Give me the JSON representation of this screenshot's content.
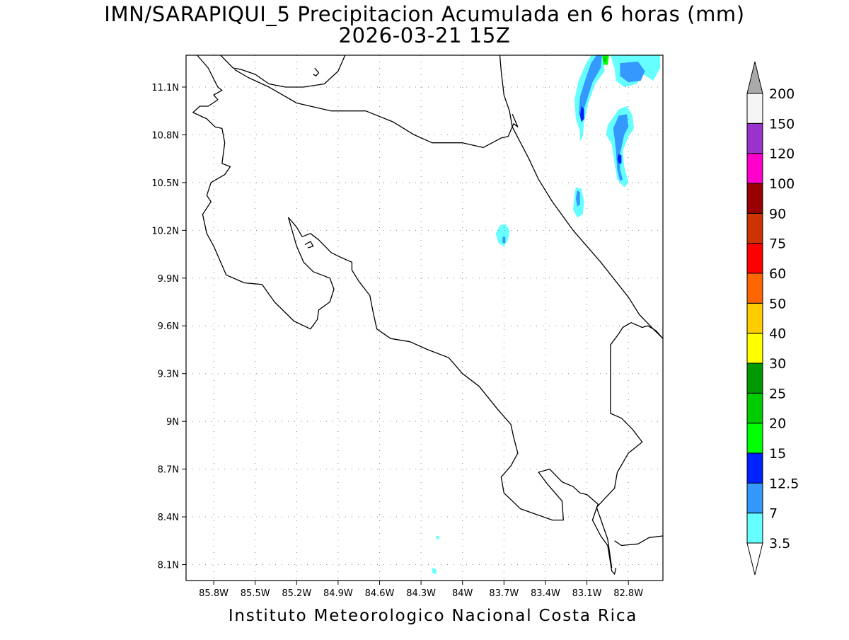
{
  "header": {
    "title_line1": "IMN/SARAPIQUI_5 Precipitacion Acumulada en 6 horas (mm)",
    "title_line2": "2026-03-21 15Z"
  },
  "footer": {
    "credit": "Instituto Meteorologico Nacional Costa Rica"
  },
  "map": {
    "lon_range": [
      -86.0,
      -82.55
    ],
    "lat_range": [
      8.0,
      11.3
    ],
    "lon_ticks": [
      {
        "value": -85.8,
        "label": "85.8W"
      },
      {
        "value": -85.5,
        "label": "85.5W"
      },
      {
        "value": -85.2,
        "label": "85.2W"
      },
      {
        "value": -84.9,
        "label": "84.9W"
      },
      {
        "value": -84.6,
        "label": "84.6W"
      },
      {
        "value": -84.3,
        "label": "84.3W"
      },
      {
        "value": -84.0,
        "label": "84W"
      },
      {
        "value": -83.7,
        "label": "83.7W"
      },
      {
        "value": -83.4,
        "label": "83.4W"
      },
      {
        "value": -83.1,
        "label": "83.1W"
      },
      {
        "value": -82.8,
        "label": "82.8W"
      }
    ],
    "lat_ticks": [
      {
        "value": 11.1,
        "label": "11.1N"
      },
      {
        "value": 10.8,
        "label": "10.8N"
      },
      {
        "value": 10.5,
        "label": "10.5N"
      },
      {
        "value": 10.2,
        "label": "10.2N"
      },
      {
        "value": 9.9,
        "label": "9.9N"
      },
      {
        "value": 9.6,
        "label": "9.6N"
      },
      {
        "value": 9.3,
        "label": "9.3N"
      },
      {
        "value": 9.0,
        "label": "9N"
      },
      {
        "value": 8.7,
        "label": "8.7N"
      },
      {
        "value": 8.4,
        "label": "8.4N"
      },
      {
        "value": 8.1,
        "label": "8.1N"
      }
    ],
    "grid": true
  },
  "legend": {
    "labels": [
      "3.5",
      "7",
      "12.5",
      "15",
      "20",
      "25",
      "30",
      "40",
      "50",
      "60",
      "75",
      "90",
      "100",
      "120",
      "150",
      "200"
    ],
    "colors": [
      "#66ffff",
      "#3399ff",
      "#0022ff",
      "#00ff00",
      "#00cc00",
      "#009900",
      "#ffff00",
      "#ffcc00",
      "#ff6600",
      "#ff0000",
      "#cc3300",
      "#990000",
      "#ff00cc",
      "#9933cc",
      "#f5f5f5"
    ],
    "over_color": "#aaaaaa",
    "under_color": "#ffffff"
  },
  "precip_areas": [
    {
      "level": "3.5",
      "color": "#66ffff",
      "points": [
        [
          -83.07,
          11.3
        ],
        [
          -82.99,
          11.3
        ],
        [
          -82.97,
          11.2
        ],
        [
          -83.04,
          11.12
        ],
        [
          -83.09,
          11.0
        ],
        [
          -83.12,
          10.88
        ],
        [
          -83.13,
          10.79
        ],
        [
          -83.15,
          10.76
        ],
        [
          -83.15,
          10.82
        ],
        [
          -83.18,
          10.9
        ],
        [
          -83.19,
          11.02
        ],
        [
          -83.16,
          11.14
        ],
        [
          -83.11,
          11.24
        ]
      ]
    },
    {
      "level": "3.5",
      "color": "#66ffff",
      "points": [
        [
          -82.93,
          11.3
        ],
        [
          -82.57,
          11.3
        ],
        [
          -82.57,
          11.22
        ],
        [
          -82.62,
          11.14
        ],
        [
          -82.69,
          11.18
        ],
        [
          -82.74,
          11.12
        ],
        [
          -82.83,
          11.1
        ],
        [
          -82.89,
          11.14
        ],
        [
          -82.9,
          11.22
        ]
      ]
    },
    {
      "level": "3.5",
      "color": "#66ffff",
      "points": [
        [
          -82.95,
          10.86
        ],
        [
          -82.87,
          10.96
        ],
        [
          -82.81,
          10.98
        ],
        [
          -82.77,
          10.92
        ],
        [
          -82.76,
          10.84
        ],
        [
          -82.8,
          10.79
        ],
        [
          -82.84,
          10.7
        ],
        [
          -82.83,
          10.6
        ],
        [
          -82.8,
          10.5
        ],
        [
          -82.83,
          10.47
        ],
        [
          -82.88,
          10.52
        ],
        [
          -82.9,
          10.62
        ],
        [
          -82.92,
          10.74
        ],
        [
          -82.96,
          10.8
        ]
      ]
    },
    {
      "level": "3.5",
      "color": "#66ffff",
      "points": [
        [
          -83.18,
          10.47
        ],
        [
          -83.14,
          10.46
        ],
        [
          -83.12,
          10.38
        ],
        [
          -83.13,
          10.3
        ],
        [
          -83.17,
          10.28
        ],
        [
          -83.2,
          10.33
        ],
        [
          -83.19,
          10.42
        ]
      ]
    },
    {
      "level": "3.5",
      "color": "#66ffff",
      "points": [
        [
          -83.73,
          10.23
        ],
        [
          -83.69,
          10.24
        ],
        [
          -83.66,
          10.2
        ],
        [
          -83.67,
          10.14
        ],
        [
          -83.7,
          10.1
        ],
        [
          -83.74,
          10.12
        ],
        [
          -83.76,
          10.18
        ]
      ]
    },
    {
      "level": "3.5",
      "color": "#66ffff",
      "points": [
        [
          -84.19,
          8.28
        ],
        [
          -84.17,
          8.28
        ],
        [
          -84.17,
          8.26
        ],
        [
          -84.19,
          8.26
        ]
      ]
    },
    {
      "level": "3.5",
      "color": "#66ffff",
      "points": [
        [
          -84.22,
          8.08
        ],
        [
          -84.19,
          8.07
        ],
        [
          -84.19,
          8.04
        ],
        [
          -84.22,
          8.05
        ]
      ]
    },
    {
      "level": "7",
      "color": "#3399ff",
      "points": [
        [
          -83.03,
          11.3
        ],
        [
          -82.99,
          11.3
        ],
        [
          -83.0,
          11.22
        ],
        [
          -83.06,
          11.13
        ],
        [
          -83.1,
          11.02
        ],
        [
          -83.13,
          10.94
        ],
        [
          -83.16,
          10.92
        ],
        [
          -83.15,
          11.04
        ],
        [
          -83.11,
          11.15
        ],
        [
          -83.07,
          11.25
        ]
      ]
    },
    {
      "level": "7",
      "color": "#3399ff",
      "points": [
        [
          -82.86,
          11.25
        ],
        [
          -82.73,
          11.26
        ],
        [
          -82.68,
          11.2
        ],
        [
          -82.71,
          11.14
        ],
        [
          -82.8,
          11.13
        ],
        [
          -82.86,
          11.17
        ]
      ]
    },
    {
      "level": "7",
      "color": "#3399ff",
      "points": [
        [
          -82.91,
          10.84
        ],
        [
          -82.87,
          10.92
        ],
        [
          -82.81,
          10.93
        ],
        [
          -82.8,
          10.85
        ],
        [
          -82.83,
          10.8
        ],
        [
          -82.86,
          10.68
        ],
        [
          -82.86,
          10.58
        ],
        [
          -82.84,
          10.52
        ],
        [
          -82.86,
          10.51
        ],
        [
          -82.88,
          10.58
        ],
        [
          -82.89,
          10.7
        ],
        [
          -82.9,
          10.78
        ]
      ]
    },
    {
      "level": "7",
      "color": "#3399ff",
      "points": [
        [
          -83.17,
          10.45
        ],
        [
          -83.15,
          10.44
        ],
        [
          -83.15,
          10.36
        ],
        [
          -83.17,
          10.35
        ],
        [
          -83.18,
          10.4
        ]
      ]
    },
    {
      "level": "7",
      "color": "#3399ff",
      "points": [
        [
          -83.71,
          10.16
        ],
        [
          -83.69,
          10.16
        ],
        [
          -83.69,
          10.12
        ],
        [
          -83.71,
          10.12
        ]
      ]
    },
    {
      "level": "12.5",
      "color": "#0022ff",
      "points": [
        [
          -83.14,
          10.98
        ],
        [
          -83.12,
          10.96
        ],
        [
          -83.12,
          10.9
        ],
        [
          -83.14,
          10.88
        ],
        [
          -83.15,
          10.92
        ]
      ]
    },
    {
      "level": "12.5",
      "color": "#0022ff",
      "points": [
        [
          -82.87,
          10.68
        ],
        [
          -82.85,
          10.67
        ],
        [
          -82.85,
          10.62
        ],
        [
          -82.87,
          10.62
        ],
        [
          -82.88,
          10.65
        ]
      ]
    },
    {
      "level": "15",
      "color": "#00ff00",
      "points": [
        [
          -82.99,
          11.3
        ],
        [
          -82.94,
          11.3
        ],
        [
          -82.95,
          11.24
        ],
        [
          -82.98,
          11.24
        ]
      ]
    },
    {
      "level": "20",
      "color": "#00cc00",
      "points": [
        [
          -82.98,
          11.29
        ],
        [
          -82.96,
          11.29
        ],
        [
          -82.96,
          11.26
        ],
        [
          -82.98,
          11.26
        ]
      ]
    }
  ],
  "coastlines": [
    {
      "name": "northwest-coast",
      "points": [
        [
          -85.92,
          11.3
        ],
        [
          -85.84,
          11.22
        ],
        [
          -85.8,
          11.15
        ],
        [
          -85.77,
          11.1
        ],
        [
          -85.74,
          11.08
        ],
        [
          -85.8,
          11.05
        ],
        [
          -85.77,
          11.02
        ],
        [
          -85.84,
          10.98
        ],
        [
          -85.9,
          10.98
        ],
        [
          -85.95,
          10.94
        ],
        [
          -85.85,
          10.9
        ],
        [
          -85.79,
          10.85
        ],
        [
          -85.74,
          10.84
        ],
        [
          -85.72,
          10.75
        ],
        [
          -85.74,
          10.62
        ],
        [
          -85.68,
          10.6
        ],
        [
          -85.72,
          10.55
        ],
        [
          -85.82,
          10.5
        ],
        [
          -85.85,
          10.42
        ],
        [
          -85.82,
          10.38
        ],
        [
          -85.88,
          10.3
        ],
        [
          -85.85,
          10.18
        ],
        [
          -85.8,
          10.1
        ],
        [
          -85.71,
          9.92
        ],
        [
          -85.58,
          9.87
        ],
        [
          -85.45,
          9.86
        ],
        [
          -85.36,
          9.75
        ],
        [
          -85.22,
          9.63
        ],
        [
          -85.1,
          9.58
        ],
        [
          -85.05,
          9.64
        ],
        [
          -85.04,
          9.7
        ],
        [
          -84.96,
          9.75
        ],
        [
          -84.93,
          9.83
        ],
        [
          -84.96,
          9.9
        ],
        [
          -85.08,
          9.94
        ],
        [
          -85.15,
          10.0
        ],
        [
          -85.2,
          10.1
        ],
        [
          -85.24,
          10.22
        ],
        [
          -85.26,
          10.28
        ],
        [
          -85.2,
          10.22
        ],
        [
          -85.16,
          10.16
        ],
        [
          -85.1,
          10.18
        ],
        [
          -85.04,
          10.14
        ],
        [
          -84.95,
          10.06
        ],
        [
          -84.88,
          10.03
        ],
        [
          -84.8,
          10.0
        ],
        [
          -84.8,
          9.95
        ],
        [
          -84.75,
          9.88
        ],
        [
          -84.67,
          9.79
        ],
        [
          -84.65,
          9.7
        ],
        [
          -84.62,
          9.58
        ],
        [
          -84.52,
          9.52
        ],
        [
          -84.38,
          9.5
        ],
        [
          -84.25,
          9.45
        ],
        [
          -84.1,
          9.4
        ],
        [
          -84.0,
          9.3
        ],
        [
          -83.88,
          9.22
        ],
        [
          -83.75,
          9.08
        ],
        [
          -83.65,
          8.98
        ],
        [
          -83.63,
          8.9
        ],
        [
          -83.6,
          8.8
        ],
        [
          -83.65,
          8.72
        ],
        [
          -83.72,
          8.65
        ],
        [
          -83.7,
          8.55
        ],
        [
          -83.58,
          8.45
        ],
        [
          -83.48,
          8.42
        ],
        [
          -83.35,
          8.38
        ],
        [
          -83.27,
          8.38
        ],
        [
          -83.28,
          8.5
        ],
        [
          -83.38,
          8.6
        ],
        [
          -83.45,
          8.68
        ],
        [
          -83.37,
          8.7
        ],
        [
          -83.28,
          8.62
        ],
        [
          -83.2,
          8.59
        ],
        [
          -83.15,
          8.55
        ],
        [
          -83.1,
          8.54
        ],
        [
          -83.02,
          8.48
        ],
        [
          -83.06,
          8.38
        ],
        [
          -83.0,
          8.28
        ],
        [
          -82.95,
          8.22
        ],
        [
          -82.92,
          8.06
        ],
        [
          -82.9,
          8.04
        ],
        [
          -82.89,
          8.08
        ]
      ]
    },
    {
      "name": "chira-island",
      "points": [
        [
          -85.14,
          10.11
        ],
        [
          -85.1,
          10.13
        ],
        [
          -85.08,
          10.1
        ],
        [
          -85.12,
          10.09
        ]
      ]
    },
    {
      "name": "nicaragua-border",
      "points": [
        [
          -85.65,
          11.21
        ],
        [
          -85.55,
          11.16
        ],
        [
          -85.4,
          11.1
        ],
        [
          -85.2,
          11.0
        ],
        [
          -84.95,
          10.95
        ],
        [
          -84.7,
          10.95
        ],
        [
          -84.5,
          10.88
        ],
        [
          -84.35,
          10.8
        ],
        [
          -84.22,
          10.75
        ],
        [
          -84.0,
          10.75
        ],
        [
          -83.85,
          10.72
        ],
        [
          -83.72,
          10.78
        ],
        [
          -83.67,
          10.79
        ],
        [
          -83.63,
          10.87
        ],
        [
          -83.6,
          10.85
        ],
        [
          -83.64,
          10.93
        ]
      ]
    },
    {
      "name": "lake-nicaragua-shore",
      "points": [
        [
          -85.75,
          11.3
        ],
        [
          -85.66,
          11.22
        ],
        [
          -85.6,
          11.21
        ],
        [
          -85.5,
          11.18
        ],
        [
          -85.4,
          11.12
        ],
        [
          -85.28,
          11.1
        ],
        [
          -85.15,
          11.1
        ],
        [
          -85.0,
          11.12
        ],
        [
          -84.9,
          11.2
        ],
        [
          -84.85,
          11.3
        ]
      ]
    },
    {
      "name": "lake-island",
      "points": [
        [
          -85.07,
          11.22
        ],
        [
          -85.04,
          11.19
        ],
        [
          -85.06,
          11.17
        ],
        [
          -85.08,
          11.18
        ]
      ]
    },
    {
      "name": "nicaragua-east-coast",
      "points": [
        [
          -83.73,
          11.3
        ],
        [
          -83.72,
          11.2
        ],
        [
          -83.7,
          11.05
        ],
        [
          -83.66,
          10.95
        ],
        [
          -83.64,
          10.85
        ]
      ]
    },
    {
      "name": "caribbean-coast",
      "points": [
        [
          -83.64,
          10.85
        ],
        [
          -83.58,
          10.75
        ],
        [
          -83.52,
          10.65
        ],
        [
          -83.45,
          10.52
        ],
        [
          -83.35,
          10.38
        ],
        [
          -83.2,
          10.2
        ],
        [
          -83.0,
          10.0
        ],
        [
          -82.8,
          9.78
        ],
        [
          -82.72,
          9.67
        ],
        [
          -82.62,
          9.58
        ],
        [
          -82.55,
          9.52
        ]
      ]
    },
    {
      "name": "panama-border-north",
      "points": [
        [
          -82.55,
          9.52
        ],
        [
          -82.6,
          9.57
        ],
        [
          -82.66,
          9.6
        ],
        [
          -82.7,
          9.59
        ],
        [
          -82.78,
          9.62
        ],
        [
          -82.84,
          9.59
        ],
        [
          -82.87,
          9.55
        ],
        [
          -82.93,
          9.48
        ],
        [
          -82.93,
          9.05
        ],
        [
          -82.85,
          9.02
        ],
        [
          -82.77,
          8.95
        ],
        [
          -82.7,
          8.87
        ],
        [
          -82.8,
          8.8
        ],
        [
          -82.88,
          8.68
        ],
        [
          -82.9,
          8.58
        ],
        [
          -83.03,
          8.46
        ],
        [
          -82.95,
          8.26
        ],
        [
          -82.92,
          8.08
        ]
      ]
    },
    {
      "name": "panama-coast-south",
      "points": [
        [
          -82.55,
          8.28
        ],
        [
          -82.65,
          8.27
        ],
        [
          -82.73,
          8.23
        ],
        [
          -82.85,
          8.22
        ],
        [
          -82.9,
          8.25
        ]
      ]
    }
  ]
}
